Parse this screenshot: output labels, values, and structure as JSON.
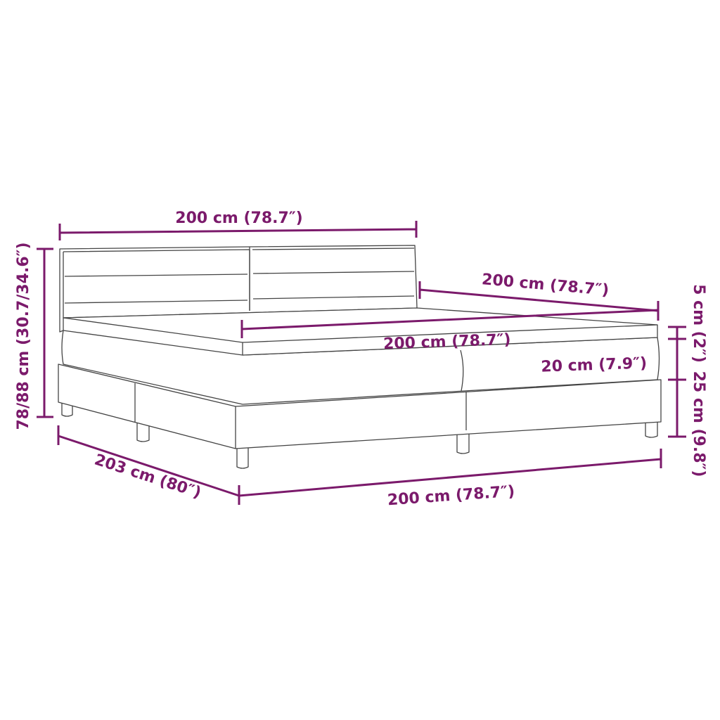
{
  "accent_color": "#7b1a6b",
  "dimensions": {
    "headboard_width": "200 cm (78.7″)",
    "total_height": "78/88 cm (30.7/34.6″)",
    "topper_length": "200 cm (78.7″)",
    "topper_width": "200 cm (78.7″)",
    "topper_thickness": "5 cm (2″)",
    "mattress_thickness": "20 cm (7.9″)",
    "base_height": "25 cm (9.8″)",
    "bed_length": "203 cm (80″)",
    "bed_width": "200 cm (78.7″)"
  }
}
